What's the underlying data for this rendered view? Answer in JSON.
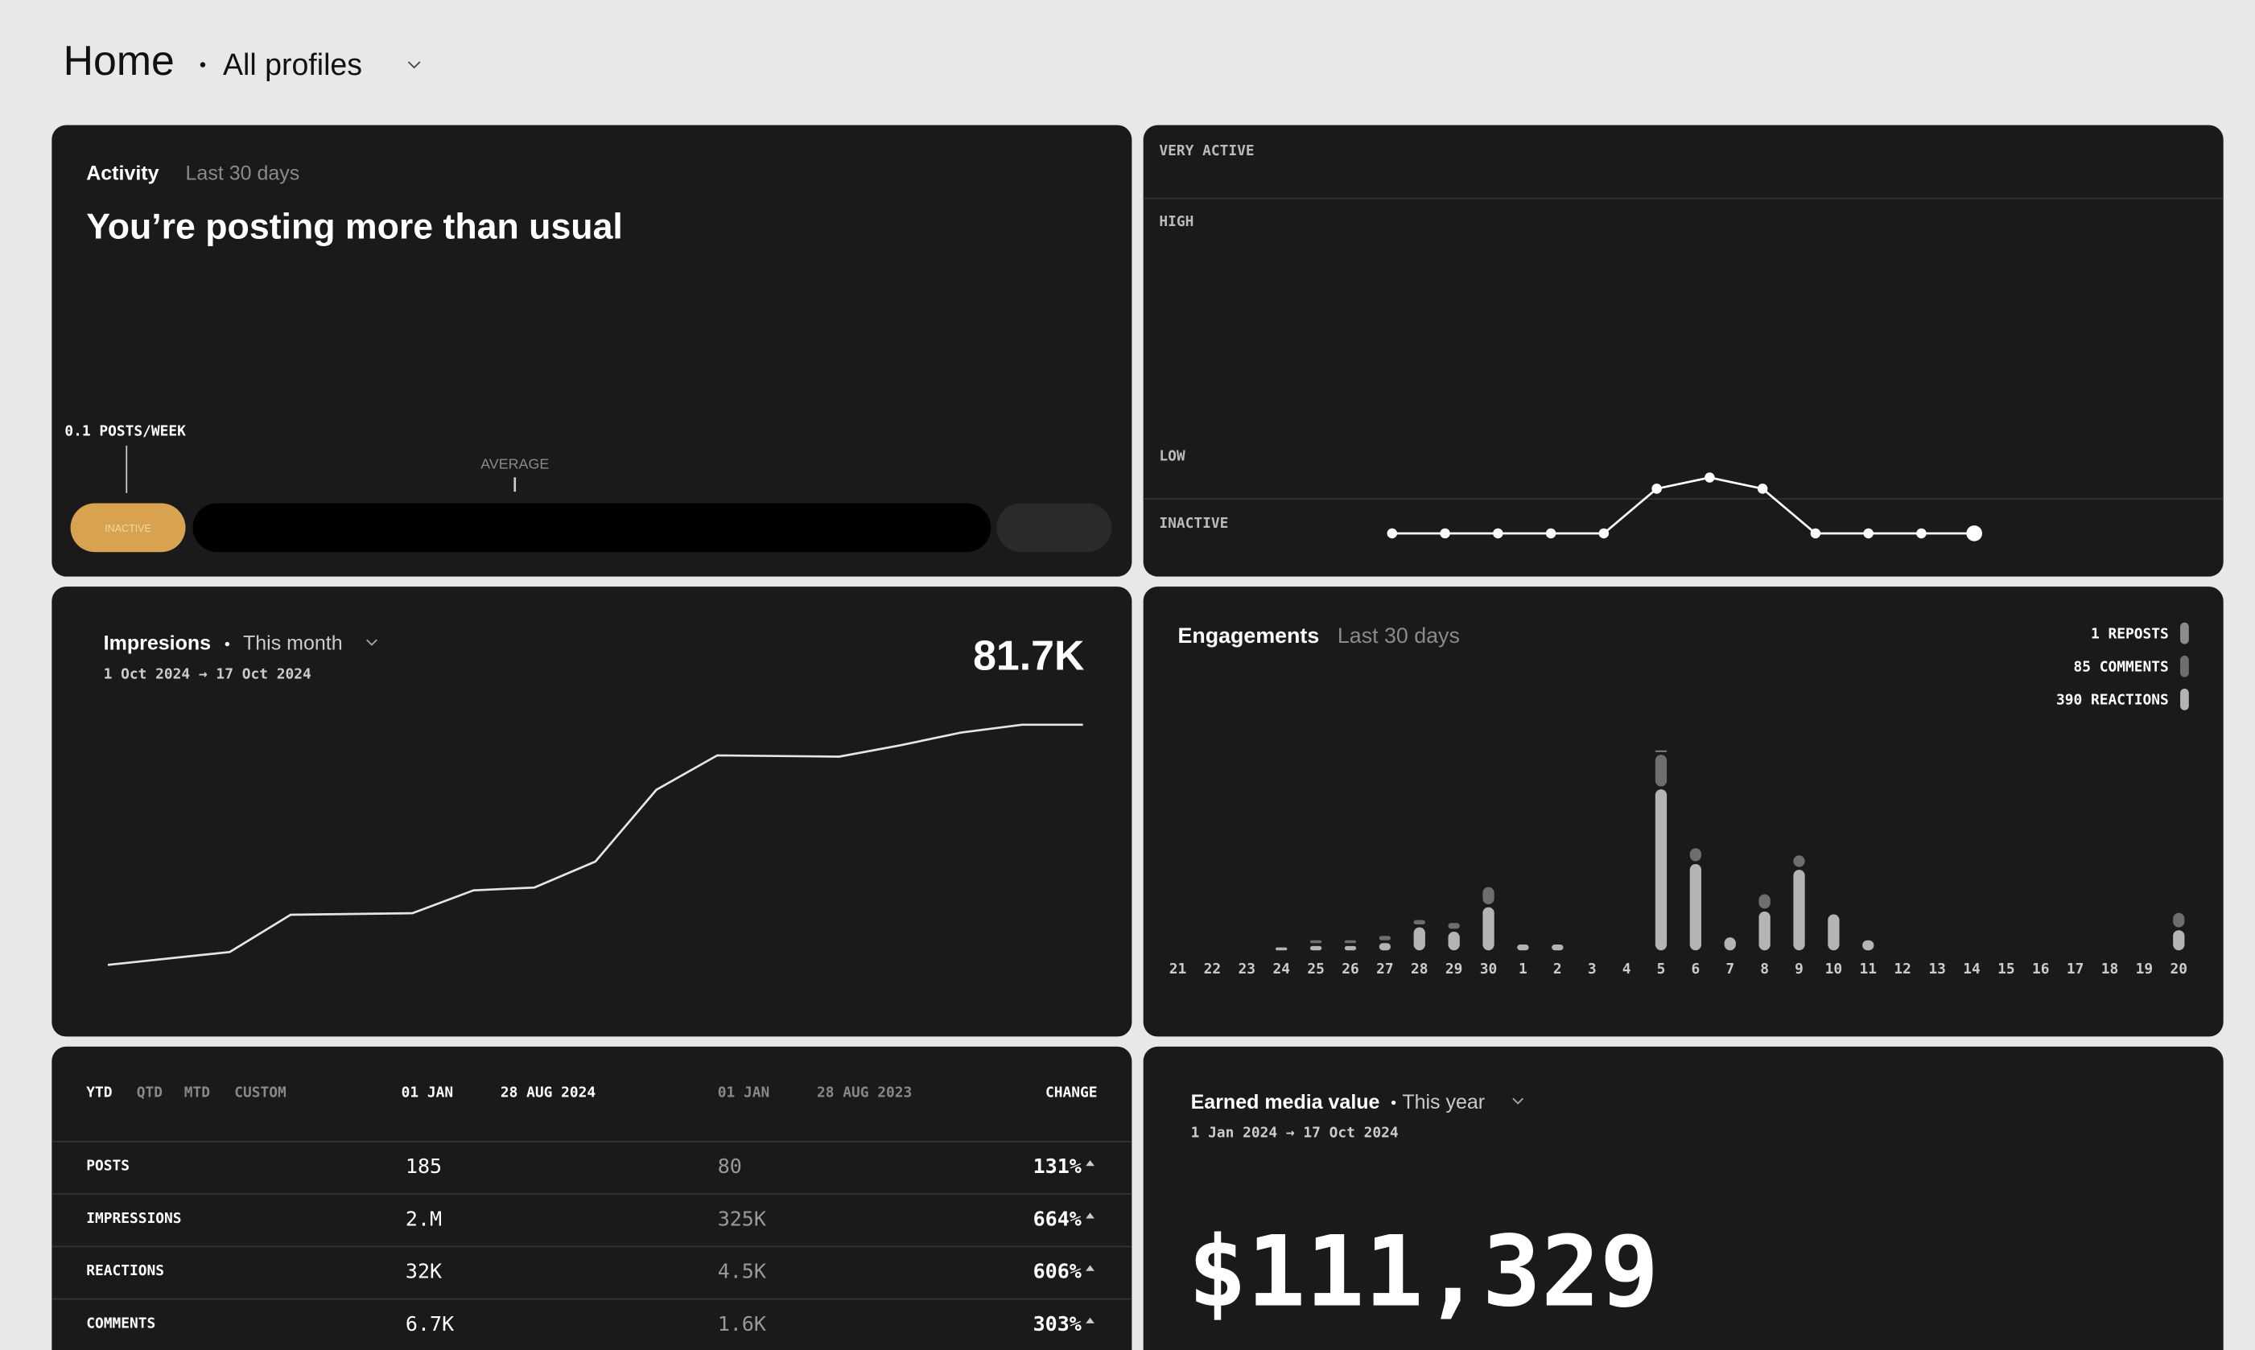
{
  "header": {
    "title": "Home",
    "profile": "All profiles"
  },
  "activity": {
    "label": "Activity",
    "period": "Last 30 days",
    "headline": "You’re posting more than usual",
    "rate": "0.1 POSTS/WEEK",
    "average": "AVERAGE",
    "level": "INACTIVE"
  },
  "chart_data": [
    {
      "type": "line",
      "categories": [
        null,
        null,
        null,
        null,
        null,
        null,
        null,
        null,
        null,
        null,
        null,
        null
      ],
      "values": [
        0,
        0,
        0,
        0,
        0,
        12,
        15,
        12,
        0,
        0,
        0,
        0
      ],
      "color": "#ffffff",
      "ylim": [
        0,
        100
      ],
      "yticks": [
        {
          "value": 0,
          "label": "INACTIVE"
        },
        {
          "value": 18,
          "label": "LOW"
        },
        {
          "value": 81,
          "label": "HIGH"
        },
        {
          "value": 100,
          "label": "VERY ACTIVE"
        }
      ]
    },
    {
      "type": "line",
      "title": "Impresions",
      "period": "This month",
      "subtitle": "1 Oct 2024 → 17 Oct 2024",
      "total": "81.7K",
      "x": [
        1,
        3,
        4,
        6,
        7,
        8,
        9,
        10,
        11,
        13,
        14,
        15,
        16,
        17
      ],
      "values": [
        5,
        9.1,
        21,
        21.5,
        28.8,
        29.7,
        38,
        60.9,
        71.9,
        71.5,
        75.1,
        79.2,
        81.7,
        81.7
      ],
      "xlim": [
        1,
        17
      ],
      "ylim": [
        0,
        90
      ],
      "color": "#e6e6e6"
    },
    {
      "type": "bar",
      "stacked": true,
      "title": "Engagements",
      "period": "Last 30 days",
      "categories": [
        "21",
        "22",
        "23",
        "24",
        "25",
        "26",
        "27",
        "28",
        "29",
        "30",
        "1",
        "2",
        "3",
        "4",
        "5",
        "6",
        "7",
        "8",
        "9",
        "10",
        "11",
        "12",
        "13",
        "14",
        "15",
        "16",
        "17",
        "18",
        "19",
        "20"
      ],
      "ylim": [
        0,
        150
      ],
      "series": [
        {
          "name": "390 REACTIONS",
          "color": "#b4b4b4",
          "values": [
            0,
            0,
            0,
            2,
            3,
            3,
            5,
            16,
            13,
            30,
            4,
            4,
            0,
            0,
            112,
            60,
            9,
            27,
            56,
            25,
            7,
            0,
            0,
            0,
            0,
            0,
            0,
            0,
            0,
            14
          ]
        },
        {
          "name": "85 COMMENTS",
          "color": "#6e6e6e",
          "values": [
            0,
            0,
            0,
            0,
            2,
            2,
            3,
            3,
            4,
            12,
            0,
            0,
            0,
            0,
            22,
            9,
            0,
            10,
            8,
            0,
            0,
            0,
            0,
            0,
            0,
            0,
            0,
            0,
            0,
            10
          ]
        },
        {
          "name": "1 REPOSTS",
          "color": "#8c8c8c",
          "values": [
            0,
            0,
            0,
            0,
            0,
            0,
            0,
            0,
            0,
            0,
            0,
            0,
            0,
            0,
            1,
            0,
            0,
            0,
            0,
            0,
            0,
            0,
            0,
            0,
            0,
            0,
            0,
            0,
            0,
            0
          ]
        }
      ]
    }
  ],
  "table": {
    "tabs": [
      "YTD",
      "QTD",
      "MTD",
      "CUSTOM"
    ],
    "columns": [
      "01 JAN",
      "28 AUG 2024",
      "01 JAN",
      "28 AUG 2023",
      "CHANGE"
    ],
    "rows": [
      [
        "POSTS",
        "185",
        "80",
        "131%"
      ],
      [
        "IMPRESSIONS",
        "2.M",
        "325K",
        "664%"
      ],
      [
        "REACTIONS",
        "32K",
        "4.5K",
        "606%"
      ],
      [
        "COMMENTS",
        "6.7K",
        "1.6K",
        "303%"
      ]
    ]
  },
  "emv": {
    "title": "Earned media value",
    "period": "This year",
    "dates": "1 Jan 2024 → 17 Oct 2024",
    "value": "$111,329"
  }
}
